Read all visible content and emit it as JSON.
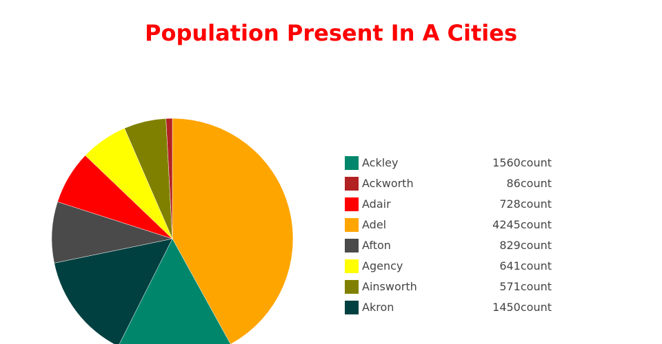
{
  "chart_data": {
    "type": "pie",
    "title": "Population Present In A Cities",
    "title_color": "#ff0000",
    "value_suffix": "count",
    "legend_position": "right",
    "slices": [
      {
        "label": "Ackley",
        "value": 1560,
        "color": "#00876b"
      },
      {
        "label": "Ackworth",
        "value": 86,
        "color": "#b22222"
      },
      {
        "label": "Adair",
        "value": 728,
        "color": "#ff0000"
      },
      {
        "label": "Adel",
        "value": 4245,
        "color": "#ffa500"
      },
      {
        "label": "Afton",
        "value": 829,
        "color": "#4a4a4a"
      },
      {
        "label": "Agency",
        "value": 641,
        "color": "#ffff00"
      },
      {
        "label": "Ainsworth",
        "value": 571,
        "color": "#808000"
      },
      {
        "label": "Akron",
        "value": 1450,
        "color": "#004040"
      }
    ]
  }
}
